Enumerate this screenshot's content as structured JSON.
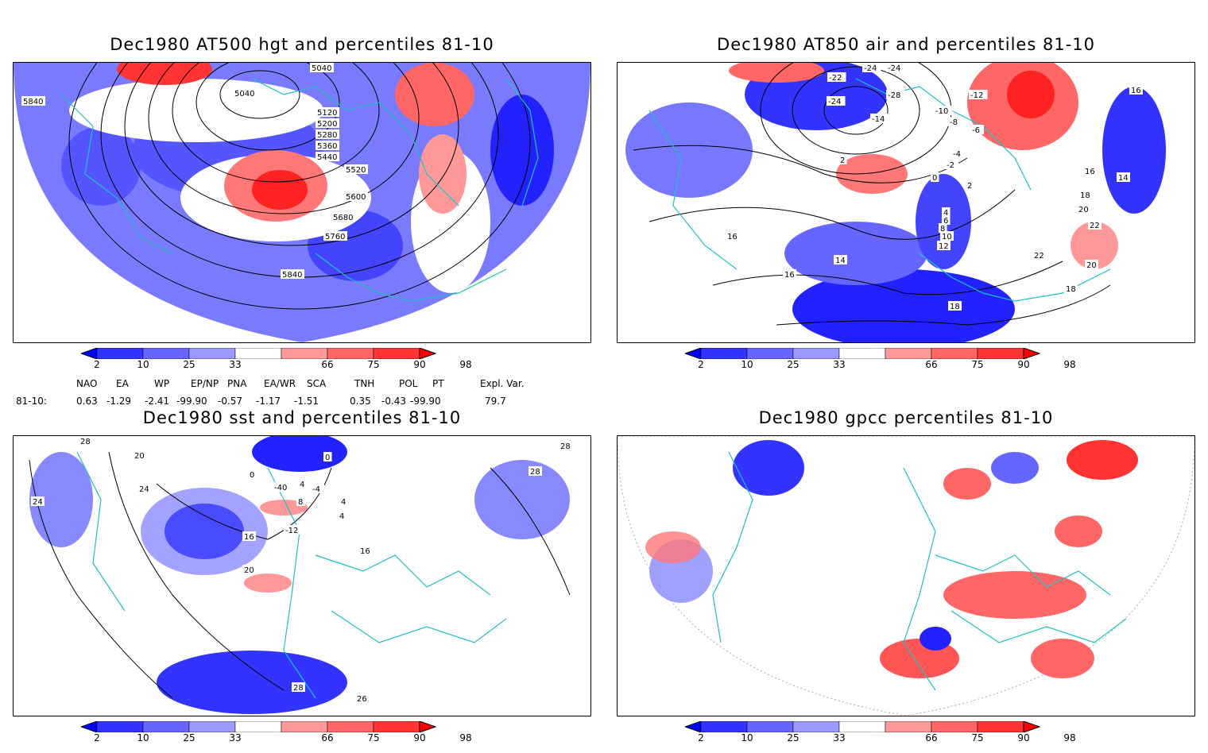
{
  "panels": [
    {
      "id": "tl",
      "title": "Dec1980 AT500 hgt and percentiles 81-10"
    },
    {
      "id": "tr",
      "title": "Dec1980 AT850 air and percentiles 81-10"
    },
    {
      "id": "bl",
      "title": "Dec1980 sst and percentiles 81-10"
    },
    {
      "id": "br",
      "title": "Dec1980 gpcc percentiles 81-10"
    }
  ],
  "colorbar": {
    "labels": [
      "2",
      "10",
      "25",
      "33",
      "66",
      "75",
      "90",
      "98"
    ],
    "colors": [
      "#0000ff",
      "#3333ff",
      "#6666ff",
      "#9999ff",
      "#ffffff",
      "#ff9999",
      "#ff6666",
      "#ff3333",
      "#ff0000"
    ]
  },
  "indices": {
    "headers": [
      "NAO",
      "EA",
      "WP",
      "EP/NP",
      "PNA",
      "EA/WR",
      "SCA",
      "TNH",
      "POL",
      "PT",
      "Expl. Var."
    ],
    "row_label": "81-10:",
    "values": [
      "0.63",
      "-1.29",
      "-2.41",
      "-99.90",
      "-0.57",
      "-1.17",
      "-1.51",
      "0.35",
      "-0.43",
      "-99.90",
      "79.7"
    ]
  },
  "contour_labels": {
    "tl": [
      "5040",
      "5040",
      "5120",
      "5200",
      "5280",
      "5360",
      "5440",
      "5520",
      "5600",
      "5680",
      "5760",
      "5840",
      "5840"
    ],
    "tr": [
      "-24",
      "-24",
      "-22",
      "-24",
      "-28",
      "-12",
      "-10",
      "-14",
      "-8",
      "-6",
      "-4",
      "-2",
      "2",
      "0",
      "2",
      "4",
      "6",
      "8",
      "10",
      "12",
      "14",
      "16",
      "16",
      "14",
      "16",
      "18",
      "20",
      "22",
      "22",
      "20",
      "18",
      "18",
      "16"
    ],
    "bl": [
      "28",
      "20",
      "24",
      "24",
      "0",
      "0",
      "4",
      "-40",
      "-4",
      "8",
      "4",
      "4",
      "-12",
      "16",
      "20",
      "16",
      "28",
      "26",
      "28",
      "28"
    ]
  }
}
